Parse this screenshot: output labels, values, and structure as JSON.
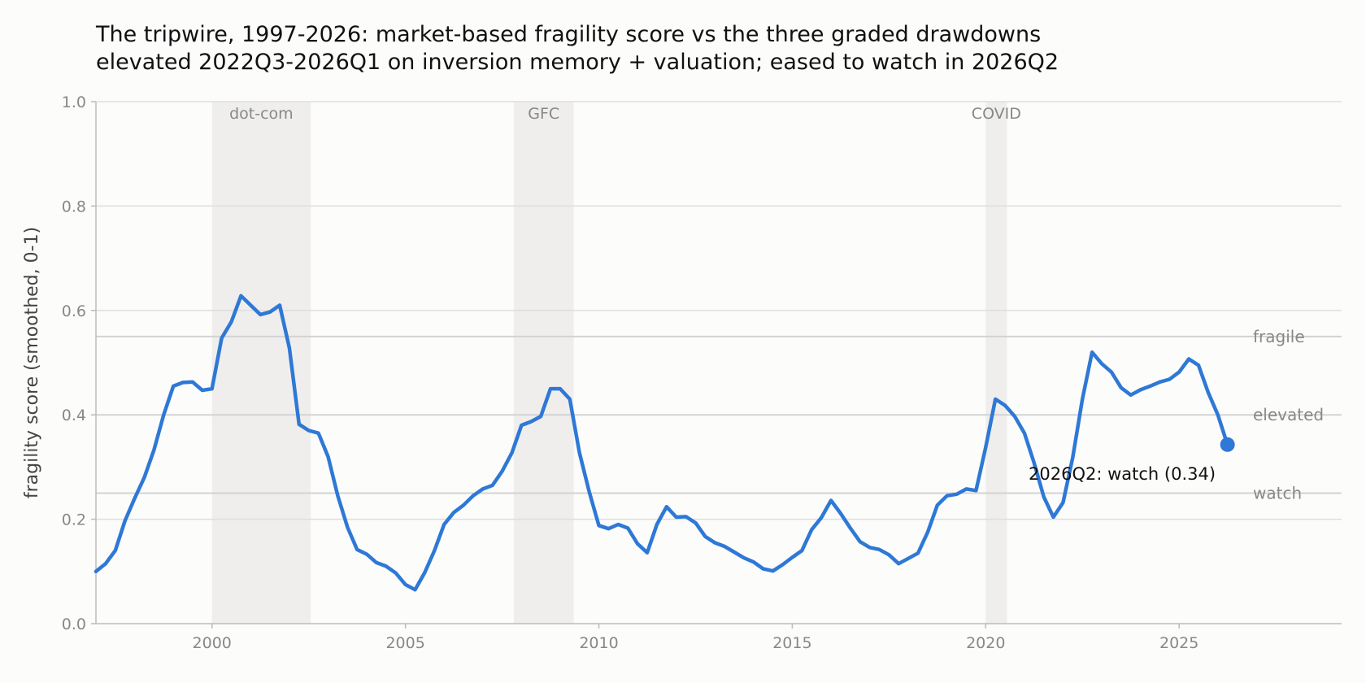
{
  "chart_data": {
    "type": "line",
    "title": "The tripwire, 1997-2026: market-based fragility score vs the three graded drawdowns",
    "subtitle": "elevated 2022Q3-2026Q1 on inversion memory + valuation; eased to watch in 2026Q2",
    "xlabel": "",
    "ylabel": "fragility score (smoothed, 0-1)",
    "xlim": [
      1997,
      2029.2
    ],
    "ylim": [
      0,
      1.0
    ],
    "grid": true,
    "x_ticks": [
      2000,
      2005,
      2010,
      2015,
      2020,
      2025
    ],
    "y_ticks": [
      0.0,
      0.2,
      0.4,
      0.6,
      0.8,
      1.0
    ],
    "x_tick_labels": [
      "2000",
      "2005",
      "2010",
      "2015",
      "2020",
      "2025"
    ],
    "y_tick_labels": [
      "0.0",
      "0.2",
      "0.4",
      "0.6",
      "0.8",
      "1.0"
    ],
    "shaded_periods": [
      {
        "label": "dot-com",
        "start": 2000.0,
        "end": 2002.55
      },
      {
        "label": "GFC",
        "start": 2007.8,
        "end": 2009.35
      },
      {
        "label": "COVID",
        "start": 2020.0,
        "end": 2020.55
      }
    ],
    "thresholds": [
      {
        "label": "fragile",
        "value": 0.55
      },
      {
        "label": "elevated",
        "value": 0.4
      },
      {
        "label": "watch",
        "value": 0.25
      }
    ],
    "annotation": {
      "text": "2026Q2: watch (0.34)",
      "x": 2026.25,
      "y": 0.343
    },
    "series": [
      {
        "color": "#2e78d6",
        "points": [
          [
            1997.0,
            0.1
          ],
          [
            1997.25,
            0.115
          ],
          [
            1997.5,
            0.14
          ],
          [
            1997.75,
            0.197
          ],
          [
            1998.0,
            0.24
          ],
          [
            1998.25,
            0.28
          ],
          [
            1998.5,
            0.333
          ],
          [
            1998.75,
            0.4
          ],
          [
            1999.0,
            0.455
          ],
          [
            1999.25,
            0.462
          ],
          [
            1999.5,
            0.463
          ],
          [
            1999.75,
            0.447
          ],
          [
            2000.0,
            0.45
          ],
          [
            2000.25,
            0.547
          ],
          [
            2000.5,
            0.578
          ],
          [
            2000.75,
            0.628
          ],
          [
            2001.0,
            0.61
          ],
          [
            2001.25,
            0.592
          ],
          [
            2001.5,
            0.597
          ],
          [
            2001.75,
            0.61
          ],
          [
            2002.0,
            0.528
          ],
          [
            2002.25,
            0.382
          ],
          [
            2002.5,
            0.37
          ],
          [
            2002.75,
            0.365
          ],
          [
            2003.0,
            0.32
          ],
          [
            2003.25,
            0.245
          ],
          [
            2003.5,
            0.185
          ],
          [
            2003.75,
            0.142
          ],
          [
            2004.0,
            0.133
          ],
          [
            2004.25,
            0.117
          ],
          [
            2004.5,
            0.11
          ],
          [
            2004.75,
            0.097
          ],
          [
            2005.0,
            0.075
          ],
          [
            2005.25,
            0.065
          ],
          [
            2005.5,
            0.098
          ],
          [
            2005.75,
            0.14
          ],
          [
            2006.0,
            0.19
          ],
          [
            2006.25,
            0.213
          ],
          [
            2006.5,
            0.227
          ],
          [
            2006.75,
            0.245
          ],
          [
            2007.0,
            0.258
          ],
          [
            2007.25,
            0.265
          ],
          [
            2007.5,
            0.292
          ],
          [
            2007.75,
            0.327
          ],
          [
            2008.0,
            0.38
          ],
          [
            2008.25,
            0.387
          ],
          [
            2008.5,
            0.397
          ],
          [
            2008.75,
            0.45
          ],
          [
            2009.0,
            0.45
          ],
          [
            2009.25,
            0.43
          ],
          [
            2009.5,
            0.327
          ],
          [
            2009.75,
            0.253
          ],
          [
            2010.0,
            0.188
          ],
          [
            2010.25,
            0.182
          ],
          [
            2010.5,
            0.19
          ],
          [
            2010.75,
            0.183
          ],
          [
            2011.0,
            0.153
          ],
          [
            2011.25,
            0.136
          ],
          [
            2011.5,
            0.19
          ],
          [
            2011.75,
            0.224
          ],
          [
            2012.0,
            0.204
          ],
          [
            2012.25,
            0.205
          ],
          [
            2012.5,
            0.193
          ],
          [
            2012.75,
            0.167
          ],
          [
            2013.0,
            0.155
          ],
          [
            2013.25,
            0.148
          ],
          [
            2013.5,
            0.137
          ],
          [
            2013.75,
            0.126
          ],
          [
            2014.0,
            0.118
          ],
          [
            2014.25,
            0.105
          ],
          [
            2014.5,
            0.101
          ],
          [
            2014.75,
            0.113
          ],
          [
            2015.0,
            0.127
          ],
          [
            2015.25,
            0.14
          ],
          [
            2015.5,
            0.18
          ],
          [
            2015.75,
            0.203
          ],
          [
            2016.0,
            0.236
          ],
          [
            2016.25,
            0.211
          ],
          [
            2016.5,
            0.183
          ],
          [
            2016.75,
            0.157
          ],
          [
            2017.0,
            0.146
          ],
          [
            2017.25,
            0.142
          ],
          [
            2017.5,
            0.132
          ],
          [
            2017.75,
            0.115
          ],
          [
            2018.0,
            0.125
          ],
          [
            2018.25,
            0.135
          ],
          [
            2018.5,
            0.175
          ],
          [
            2018.75,
            0.227
          ],
          [
            2019.0,
            0.245
          ],
          [
            2019.25,
            0.248
          ],
          [
            2019.5,
            0.258
          ],
          [
            2019.75,
            0.255
          ],
          [
            2020.0,
            0.338
          ],
          [
            2020.25,
            0.43
          ],
          [
            2020.5,
            0.418
          ],
          [
            2020.75,
            0.397
          ],
          [
            2021.0,
            0.365
          ],
          [
            2021.25,
            0.308
          ],
          [
            2021.5,
            0.243
          ],
          [
            2021.75,
            0.204
          ],
          [
            2022.0,
            0.232
          ],
          [
            2022.25,
            0.318
          ],
          [
            2022.5,
            0.43
          ],
          [
            2022.75,
            0.52
          ],
          [
            2023.0,
            0.498
          ],
          [
            2023.25,
            0.482
          ],
          [
            2023.5,
            0.452
          ],
          [
            2023.75,
            0.438
          ],
          [
            2024.0,
            0.448
          ],
          [
            2024.25,
            0.455
          ],
          [
            2024.5,
            0.463
          ],
          [
            2024.75,
            0.468
          ],
          [
            2025.0,
            0.482
          ],
          [
            2025.25,
            0.507
          ],
          [
            2025.5,
            0.495
          ],
          [
            2025.75,
            0.443
          ],
          [
            2026.0,
            0.4
          ],
          [
            2026.25,
            0.343
          ]
        ]
      }
    ]
  }
}
